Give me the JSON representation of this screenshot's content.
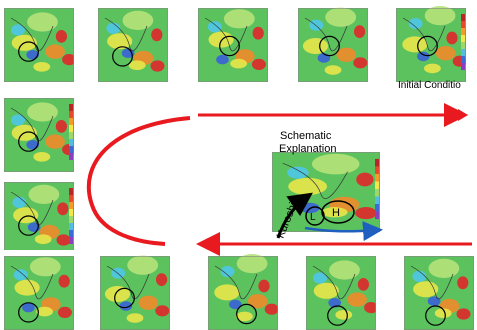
{
  "labels": {
    "initial_conditions": "Initial Conditio",
    "schematic_line1": "Schematic",
    "schematic_line2": "Explanation",
    "kuroshio": "Kuroshio",
    "low": "L",
    "high": "H"
  },
  "colors": {
    "arrow_red": "#e8191f",
    "arrow_black": "#000000",
    "arrow_blue": "#1f5fbf",
    "map_green": "#5cc25e",
    "map_light": "#b6e27a",
    "map_yellow": "#e8e64a",
    "map_orange": "#f08a2a",
    "map_red": "#e0262a",
    "map_blue": "#3a62d8",
    "map_cyan": "#4ec6e8",
    "colorbar": [
      "#b8262a",
      "#e74a2a",
      "#f59b2a",
      "#f3e84a",
      "#9fd86a",
      "#52bce3",
      "#3c6ad8",
      "#8a3fc0"
    ]
  },
  "panels": {
    "top_row": [
      "map-panel-1",
      "map-panel-2",
      "map-panel-3",
      "map-panel-4",
      "map-panel-5"
    ],
    "left_column": [
      "map-panel-6",
      "map-panel-7"
    ],
    "bottom_row": [
      "map-panel-8",
      "map-panel-9",
      "map-panel-10",
      "map-panel-11",
      "map-panel-12"
    ],
    "schematic": "map-panel-schematic"
  }
}
